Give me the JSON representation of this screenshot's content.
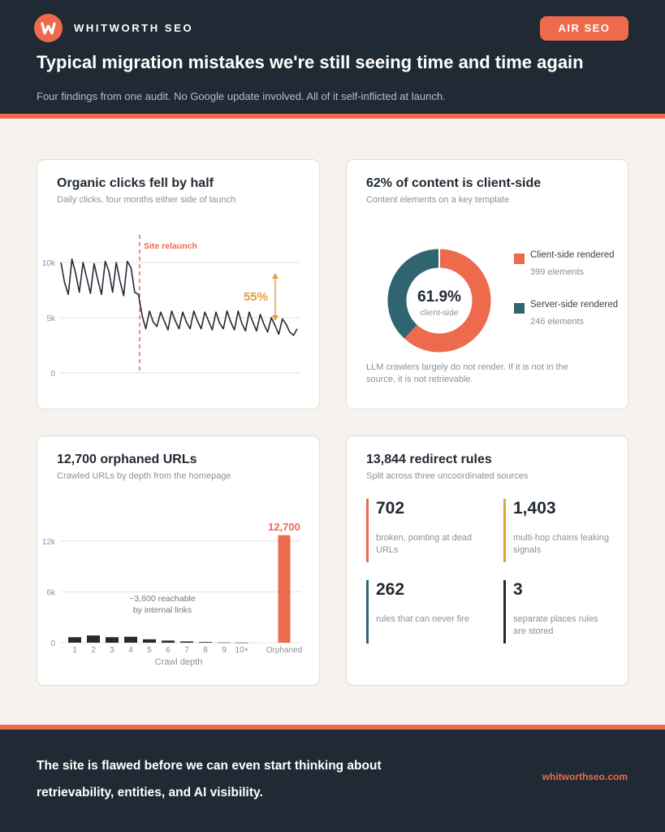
{
  "header": {
    "brand": "WHITWORTH SEO",
    "tag": "AIR SEO",
    "title": "Typical migration mistakes we're still seeing time and time again",
    "subtitle": "Four findings from one audit. No Google update involved. All of it self-inflicted at launch."
  },
  "colors": {
    "accent": "#ee6a4d",
    "navy": "#1f2a35",
    "teal": "#2f6470",
    "amber": "#e0a23a",
    "dark": "#222a33"
  },
  "cards": {
    "clicks": {
      "title": "Organic clicks fell by half",
      "subtitle": "Daily clicks, four months either side of launch"
    },
    "content": {
      "title": "62% of content is client-side",
      "subtitle": "Content elements on a key template",
      "note": "LLM crawlers largely do not render. If it is not in the source, it is not retrievable."
    },
    "orphans": {
      "title": "12,700 orphaned URLs",
      "subtitle": "Crawled URLs by depth from the homepage"
    },
    "redirects": {
      "title": "13,844 redirect rules",
      "subtitle": "Split across three uncoordinated sources",
      "stats": [
        {
          "value": "702",
          "desc": "broken, pointing at dead URLs",
          "color": "#ee6a4d"
        },
        {
          "value": "1,403",
          "desc": "multi-hop chains leaking signals",
          "color": "#e0a23a"
        },
        {
          "value": "262",
          "desc": "rules that can never fire",
          "color": "#2f6470"
        },
        {
          "value": "3",
          "desc": "separate places rules are stored",
          "color": "#222a33"
        }
      ]
    }
  },
  "chart_data": [
    {
      "type": "line",
      "title": "Organic clicks fell by half",
      "subtitle": "Daily clicks, four months either side of launch",
      "y_ticks": [
        "10k",
        "5k",
        "0"
      ],
      "ylim": [
        0,
        11000
      ],
      "annotation_relaunch": "Site relaunch",
      "annotation_drop": "55%",
      "relaunch_index": 12,
      "series": [
        {
          "values": [
            10000,
            8200,
            7100,
            10300,
            9000,
            7300,
            10000,
            8600,
            7200,
            9900,
            8400,
            7100,
            10100,
            9200,
            7300,
            10000,
            8300,
            7000,
            10100,
            9500,
            7300,
            7100,
            5200,
            4000,
            5600,
            4600,
            4200,
            5500,
            4700,
            3900,
            5600,
            4700,
            4000,
            5500,
            4600,
            4000,
            5600,
            4700,
            4000,
            5500,
            4700,
            3900,
            5500,
            4500,
            4000,
            5600,
            4600,
            3900,
            5600,
            4500,
            3800,
            5500,
            4600,
            3800,
            5300,
            4400,
            3700,
            5000,
            4300,
            3500,
            4900,
            4400,
            3700,
            3400,
            4000
          ]
        }
      ]
    },
    {
      "type": "pie",
      "title": "62% of content is client-side",
      "center_value": "61.9%",
      "center_label": "client-side",
      "slices": [
        {
          "name": "Client-side rendered",
          "value": 399,
          "label": "399 elements",
          "color": "#ee6a4d"
        },
        {
          "name": "Server-side rendered",
          "value": 246,
          "label": "246 elements",
          "color": "#2f6470"
        }
      ]
    },
    {
      "type": "bar",
      "title": "12,700 orphaned URLs",
      "categories": [
        "1",
        "2",
        "3",
        "4",
        "5",
        "6",
        "7",
        "8",
        "9",
        "10+",
        "Orphaned"
      ],
      "values": [
        650,
        850,
        650,
        700,
        400,
        250,
        150,
        80,
        20,
        10,
        12700
      ],
      "highlight_label": "12,700",
      "annotation": "~3,600 reachable by internal links",
      "xlabel": "Crawl depth",
      "y_ticks": [
        "12k",
        "6k",
        "0"
      ],
      "ylim": [
        0,
        12000
      ]
    }
  ],
  "footer": {
    "text": "The site is flawed before we can even start thinking about retrievability, entities, and AI visibility.",
    "link": "whitworthseo.com"
  }
}
